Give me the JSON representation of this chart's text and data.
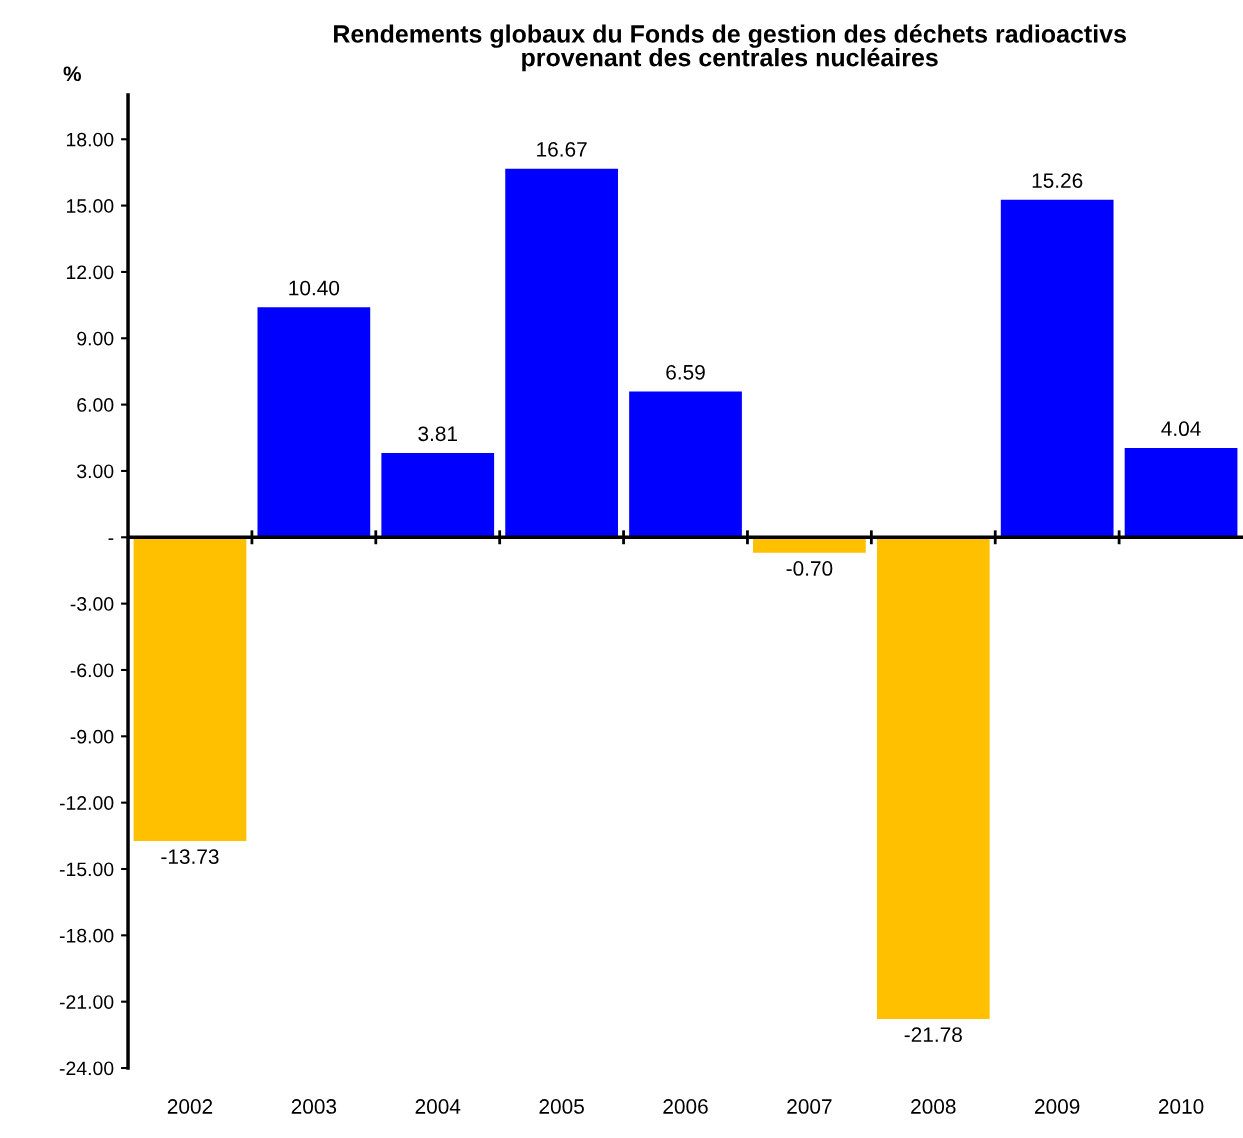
{
  "chart_data": {
    "type": "bar",
    "title": "Rendements globaux du Fonds de gestion des déchets radioactivs\nprovenant des centrales nucléaires",
    "ylabel": "%",
    "categories": [
      "2002",
      "2003",
      "2004",
      "2005",
      "2006",
      "2007",
      "2008",
      "2009",
      "2010"
    ],
    "values": [
      -13.73,
      10.4,
      3.81,
      16.67,
      6.59,
      -0.7,
      -21.78,
      15.26,
      4.04
    ],
    "colors": [
      "#ffc000",
      "#0000ff",
      "#0000ff",
      "#0000ff",
      "#0000ff",
      "#ffc000",
      "#ffc000",
      "#0000ff",
      "#0000ff"
    ],
    "value_labels": [
      "-13.73",
      "10.40",
      "3.81",
      "16.67",
      "6.59",
      "-0.70",
      "-21.78",
      "15.26",
      "4.04"
    ],
    "ylim": [
      -24,
      20
    ],
    "yticks": [
      {
        "value": 18,
        "label": "18.00"
      },
      {
        "value": 15,
        "label": "15.00"
      },
      {
        "value": 12,
        "label": "12.00"
      },
      {
        "value": 9,
        "label": "9.00"
      },
      {
        "value": 6,
        "label": "6.00"
      },
      {
        "value": 3,
        "label": "3.00"
      },
      {
        "value": 0,
        "label": "-"
      },
      {
        "value": -3,
        "label": "-3.00"
      },
      {
        "value": -6,
        "label": "-6.00"
      },
      {
        "value": -9,
        "label": "-9.00"
      },
      {
        "value": -12,
        "label": "-12.00"
      },
      {
        "value": -15,
        "label": "-15.00"
      },
      {
        "value": -18,
        "label": "-18.00"
      },
      {
        "value": -21,
        "label": "-21.00"
      },
      {
        "value": -24,
        "label": "-24.00"
      }
    ],
    "ref_lines": [
      {
        "axis": "y",
        "value": 0,
        "color": "#000000"
      }
    ],
    "grid": false
  }
}
